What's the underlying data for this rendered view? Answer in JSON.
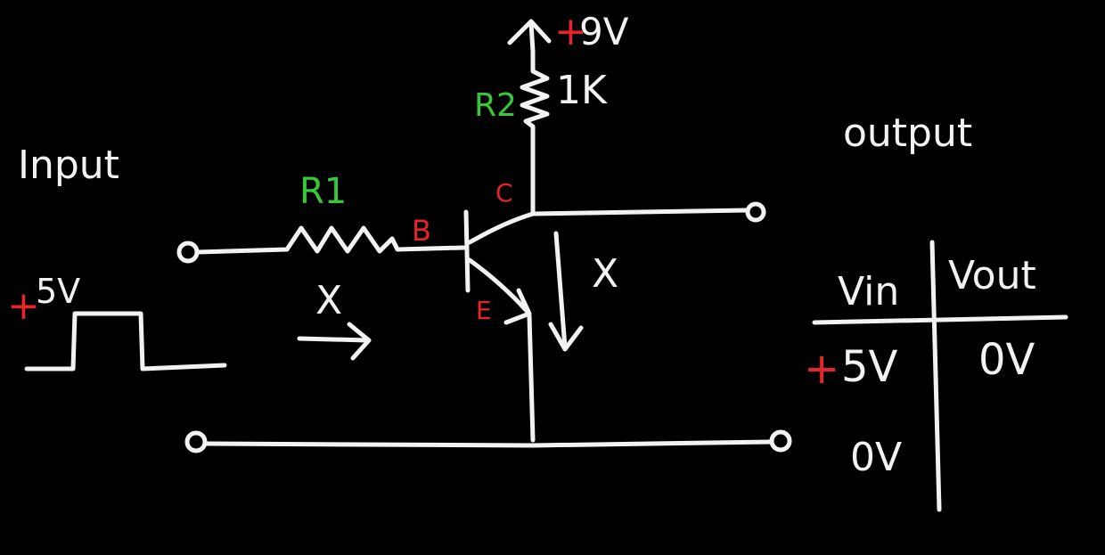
{
  "labels": {
    "input": "Input",
    "output": "output",
    "r1": "R1",
    "r2": "R2",
    "r2_value": "1K",
    "supply_sign": "+",
    "supply_value": "9V",
    "base": "B",
    "collector": "C",
    "emitter": "E",
    "pulse_sign": "+",
    "pulse_value": "5V",
    "base_current_mark": "X",
    "collector_current_mark": "X"
  },
  "truth_table": {
    "headers": [
      "Vin",
      "Vout"
    ],
    "rows": [
      {
        "vin_sign": "+",
        "vin": "5V",
        "vout": "0V"
      },
      {
        "vin_sign": "",
        "vin": "0V",
        "vout": ""
      }
    ]
  },
  "colors": {
    "background": "#000000",
    "ink": "#f2f2f2",
    "red": "#e8242b",
    "green": "#37c83a"
  }
}
